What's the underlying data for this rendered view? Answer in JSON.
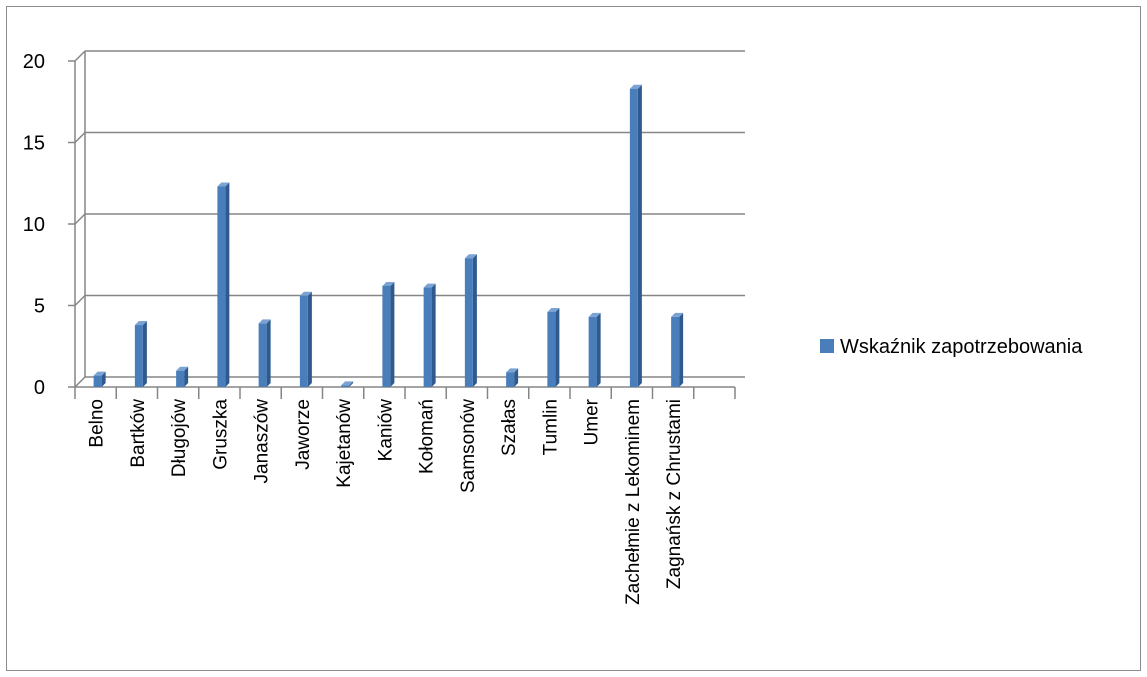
{
  "chart_data": {
    "type": "bar",
    "categories": [
      "Belno",
      "Bartków",
      "Długojów",
      "Gruszka",
      "Janaszów",
      "Jaworze",
      "Kajetanów",
      "Kaniów",
      "Kołomań",
      "Samsonów",
      "Szałas",
      "Tumlin",
      "Umer",
      "Zachełmie z Lekominem",
      "Zagnańsk z Chrustami"
    ],
    "series": [
      {
        "name": "Wskaźnik zapotrzebowania",
        "values": [
          0.7,
          3.8,
          1.0,
          12.3,
          3.9,
          5.6,
          0.1,
          6.2,
          6.1,
          7.9,
          0.9,
          4.6,
          4.3,
          18.3,
          4.3
        ]
      }
    ],
    "ylim": [
      0,
      20
    ],
    "yticks": [
      "0",
      "5",
      "10",
      "15",
      "20"
    ],
    "grid": true,
    "legend_position": "right",
    "colors": {
      "bar_front": "#4a7ebb",
      "bar_side": "#2f5a8e",
      "bar_top": "#7aa3d4",
      "grid": "#868686"
    }
  }
}
